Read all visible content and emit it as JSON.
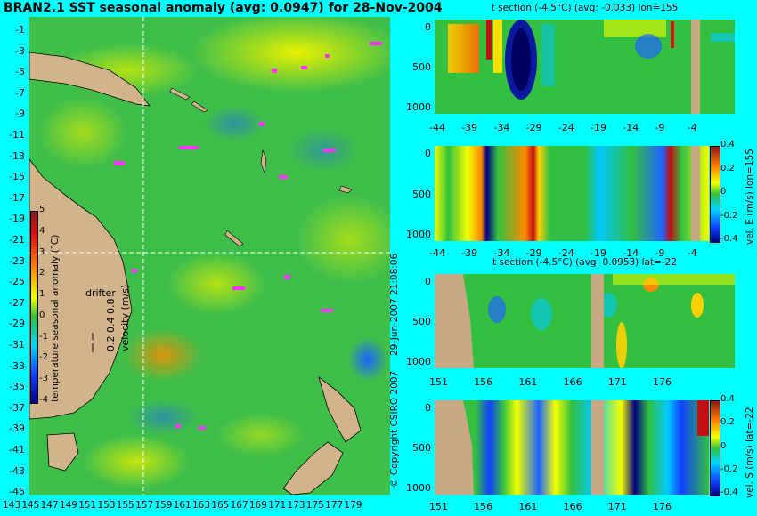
{
  "map": {
    "title": "BRAN2.1 SST seasonal anomaly (avg: 0.0947) for 28-Nov-2004",
    "lat_ticks": [
      "-1",
      "-3",
      "-5",
      "-7",
      "-9",
      "-11",
      "-13",
      "-15",
      "-17",
      "-19",
      "-21",
      "-23",
      "-25",
      "-27",
      "-29",
      "-31",
      "-33",
      "-35",
      "-37",
      "-39",
      "-41",
      "-43",
      "-45"
    ],
    "lon_ticks": [
      "143",
      "145",
      "147",
      "149",
      "151",
      "153",
      "155",
      "157",
      "159",
      "161",
      "163",
      "165",
      "167",
      "169",
      "171",
      "173",
      "175",
      "177",
      "179"
    ],
    "colorbar_ticks": [
      "5",
      "4",
      "3",
      "2",
      "1",
      "0",
      "-1",
      "-2",
      "-3",
      "-4"
    ],
    "colorbar_label": "temperature seasonal anomaly (°C)",
    "drifter_label": "drifter",
    "velocity_label": "velocity (m/s)",
    "velocity_ticks": "0.2 0.4 0.8",
    "copyright": "© Copyright CSIRO 2007",
    "timestamp": "29-Jun-2007 21:08:06",
    "colors": {
      "background": "#00ffff",
      "land": "#d2b48c",
      "drifter": "#ff33ff"
    }
  },
  "sections": [
    {
      "title": "t section (-4.5°C) (avg: -0.033) lon=155",
      "x_ticks": [
        "-44",
        "-39",
        "-34",
        "-29",
        "-24",
        "-19",
        "-14",
        "-9",
        "-4"
      ],
      "y_ticks": [
        "0",
        "500",
        "1000"
      ]
    },
    {
      "title": "",
      "x_ticks": [
        "-44",
        "-39",
        "-34",
        "-29",
        "-24",
        "-19",
        "-14",
        "-9",
        "-4"
      ],
      "y_ticks": [
        "0",
        "500",
        "1000"
      ],
      "colorbar_ticks": [
        "0.4",
        "0.2",
        "0",
        "-0.2",
        "-0.4"
      ],
      "side_label": "vel. E (m/s) lon=155"
    },
    {
      "title": "t section (-4.5°C) (avg: 0.0953) lat=-22",
      "x_ticks": [
        "151",
        "156",
        "161",
        "166",
        "171",
        "176"
      ],
      "y_ticks": [
        "0",
        "500",
        "1000"
      ]
    },
    {
      "title": "",
      "x_ticks": [
        "151",
        "156",
        "161",
        "166",
        "171",
        "176"
      ],
      "y_ticks": [
        "0",
        "500",
        "1000"
      ],
      "colorbar_ticks": [
        "0.4",
        "0.2",
        "0",
        "-0.2",
        "-0.4"
      ],
      "side_label": "vel. S (m/s) lat=-22"
    }
  ]
}
